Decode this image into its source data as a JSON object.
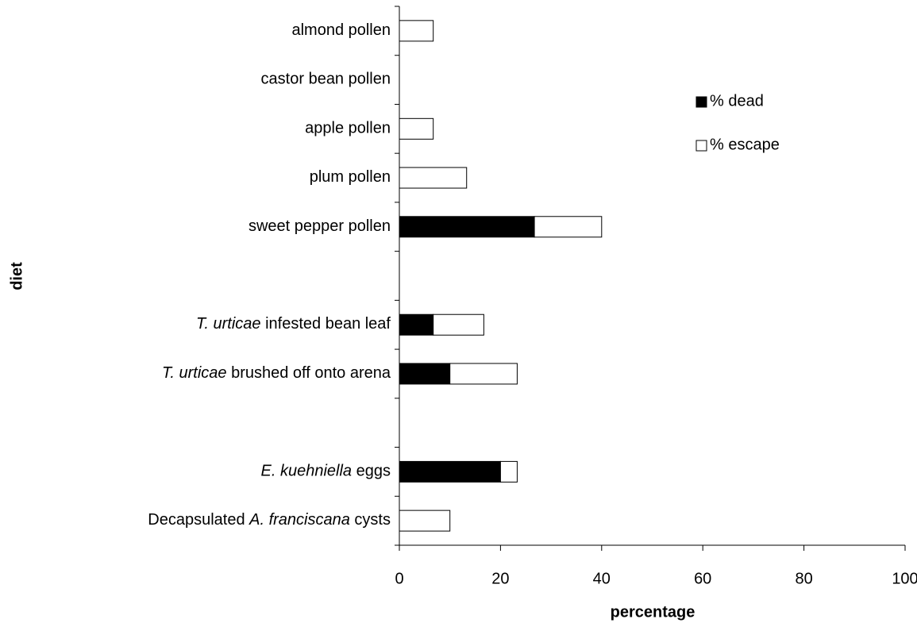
{
  "chart_data": {
    "type": "stacked_barh",
    "x_label": "percentage",
    "y_label": "diet",
    "categories": [
      [
        {
          "text": "almond pollen"
        }
      ],
      [
        {
          "text": "castor bean pollen"
        }
      ],
      [
        {
          "text": "apple pollen"
        }
      ],
      [
        {
          "text": "plum pollen"
        }
      ],
      [
        {
          "text": "sweet pepper pollen"
        }
      ],
      null,
      [
        {
          "text": "T. urticae",
          "italic": true
        },
        {
          "text": " infested bean leaf"
        }
      ],
      [
        {
          "text": "T. urticae",
          "italic": true
        },
        {
          "text": " brushed off onto arena"
        }
      ],
      null,
      [
        {
          "text": "E. kuehniella",
          "italic": true
        },
        {
          "text": " eggs"
        }
      ],
      [
        {
          "text": "Decapsulated "
        },
        {
          "text": "A. franciscana",
          "italic": true
        },
        {
          "text": " cysts"
        }
      ]
    ],
    "series": [
      {
        "name": "% dead",
        "color": "#000000",
        "values": [
          0,
          0,
          0,
          0,
          26.7,
          null,
          6.7,
          10,
          null,
          20,
          0
        ]
      },
      {
        "name": "% escape",
        "color": "#ffffff",
        "values": [
          6.7,
          0,
          6.7,
          13.3,
          13.3,
          null,
          10,
          13.3,
          null,
          3.3,
          10
        ]
      }
    ],
    "xlim": [
      0,
      100
    ],
    "xticks": [
      0,
      20,
      40,
      60,
      80,
      100
    ],
    "legend": "upper right"
  }
}
